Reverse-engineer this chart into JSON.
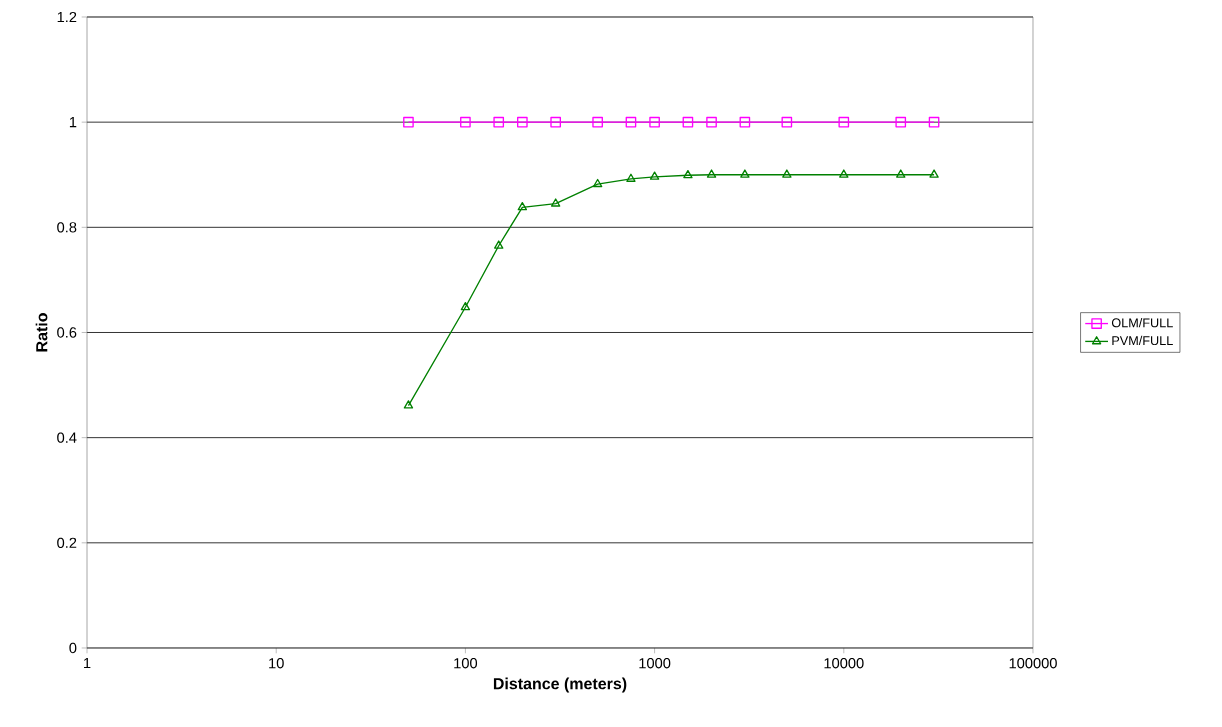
{
  "chart_data": {
    "type": "line",
    "xlabel": "Distance (meters)",
    "ylabel": "Ratio",
    "log": "x",
    "x": [
      50,
      100,
      150,
      200,
      300,
      500,
      750,
      1000,
      1500,
      2000,
      3000,
      5000,
      10000,
      20000,
      30000
    ],
    "series": [
      {
        "name": "OLM/FULL",
        "color": "#ff00ff",
        "marker": "square",
        "values": [
          1,
          1,
          1,
          1,
          1,
          1,
          1,
          1,
          1,
          1,
          1,
          1,
          1,
          1,
          1
        ]
      },
      {
        "name": "PVM/FULL",
        "color": "#008000",
        "marker": "triangle",
        "values": [
          0.461,
          0.648,
          0.765,
          0.838,
          0.845,
          0.882,
          0.892,
          0.896,
          0.899,
          0.9,
          0.9,
          0.9,
          0.9,
          0.9,
          0.9
        ]
      }
    ],
    "xlim": [
      1,
      100000
    ],
    "xticks": [
      1,
      10,
      100,
      1000,
      10000,
      100000
    ],
    "ylim": [
      0,
      1.2
    ],
    "yticks": [
      0,
      0.2,
      0.4,
      0.6,
      0.8,
      1,
      1.2
    ],
    "grid": "y",
    "legend": "right",
    "line_style": "solid"
  }
}
